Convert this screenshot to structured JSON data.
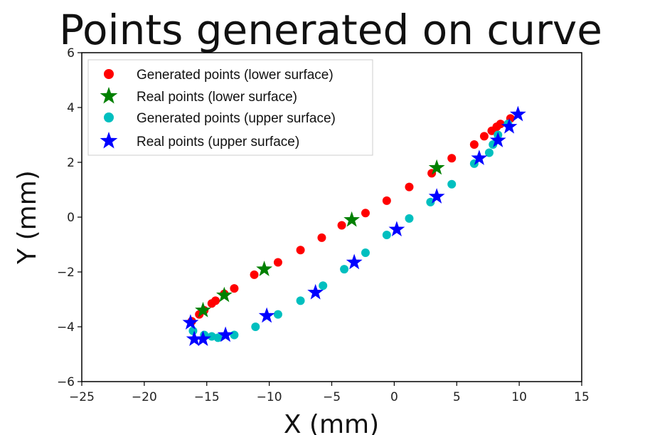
{
  "chart_data": {
    "type": "scatter",
    "title": "Points generated on curve",
    "xlabel": "X (mm)",
    "ylabel": "Y (mm)",
    "xlim": [
      -25,
      15
    ],
    "ylim": [
      -6,
      6
    ],
    "xticks": [
      -25,
      -20,
      -15,
      -10,
      -5,
      0,
      5,
      10,
      15
    ],
    "yticks": [
      -6,
      -4,
      -2,
      0,
      2,
      4,
      6
    ],
    "xtick_labels": [
      "−25",
      "−20",
      "−15",
      "−10",
      "−5",
      "0",
      "5",
      "10",
      "15"
    ],
    "ytick_labels": [
      "−6",
      "−4",
      "−2",
      "0",
      "2",
      "4",
      "6"
    ],
    "grid": false,
    "legend_position": "top-left",
    "series": [
      {
        "name": "Generated points (lower surface)",
        "marker": "circle",
        "color": "#ff0000",
        "points": [
          [
            -16.2,
            -3.8
          ],
          [
            -15.6,
            -3.55
          ],
          [
            -15.2,
            -3.4
          ],
          [
            -14.6,
            -3.15
          ],
          [
            -14.3,
            -3.05
          ],
          [
            -13.6,
            -2.8
          ],
          [
            -12.8,
            -2.6
          ],
          [
            -11.2,
            -2.1
          ],
          [
            -9.3,
            -1.65
          ],
          [
            -7.5,
            -1.2
          ],
          [
            -5.8,
            -0.75
          ],
          [
            -4.2,
            -0.3
          ],
          [
            -2.3,
            0.15
          ],
          [
            -0.6,
            0.6
          ],
          [
            1.2,
            1.1
          ],
          [
            3.0,
            1.6
          ],
          [
            4.6,
            2.15
          ],
          [
            6.4,
            2.65
          ],
          [
            7.2,
            2.95
          ],
          [
            7.8,
            3.15
          ],
          [
            8.2,
            3.3
          ],
          [
            8.5,
            3.4
          ],
          [
            9.3,
            3.6
          ]
        ]
      },
      {
        "name": "Real points (lower  surface)",
        "marker": "star",
        "color": "#008000",
        "points": [
          [
            -15.3,
            -3.4
          ],
          [
            -13.6,
            -2.85
          ],
          [
            -10.4,
            -1.9
          ],
          [
            -3.4,
            -0.1
          ],
          [
            3.4,
            1.8
          ]
        ]
      },
      {
        "name": "Generated points (upper  surface)",
        "marker": "circle",
        "color": "#00bfbf",
        "points": [
          [
            -16.1,
            -4.15
          ],
          [
            -15.2,
            -4.3
          ],
          [
            -14.6,
            -4.35
          ],
          [
            -14.1,
            -4.4
          ],
          [
            -12.8,
            -4.3
          ],
          [
            -11.1,
            -4.0
          ],
          [
            -9.3,
            -3.55
          ],
          [
            -7.5,
            -3.05
          ],
          [
            -5.7,
            -2.5
          ],
          [
            -4.0,
            -1.9
          ],
          [
            -2.3,
            -1.3
          ],
          [
            -0.6,
            -0.65
          ],
          [
            1.2,
            -0.05
          ],
          [
            2.9,
            0.55
          ],
          [
            4.6,
            1.2
          ],
          [
            6.4,
            1.95
          ],
          [
            7.6,
            2.35
          ],
          [
            7.9,
            2.65
          ],
          [
            8.3,
            3.0
          ],
          [
            9.1,
            3.4
          ]
        ]
      },
      {
        "name": "Real points (upper  surface)",
        "marker": "star",
        "color": "#0000ff",
        "points": [
          [
            -16.3,
            -3.85
          ],
          [
            -16.0,
            -4.45
          ],
          [
            -15.3,
            -4.45
          ],
          [
            -13.5,
            -4.3
          ],
          [
            -10.2,
            -3.6
          ],
          [
            -6.3,
            -2.75
          ],
          [
            -3.2,
            -1.65
          ],
          [
            0.2,
            -0.45
          ],
          [
            3.4,
            0.75
          ],
          [
            6.8,
            2.15
          ],
          [
            8.3,
            2.8
          ],
          [
            9.2,
            3.3
          ],
          [
            9.9,
            3.75
          ]
        ]
      }
    ]
  }
}
